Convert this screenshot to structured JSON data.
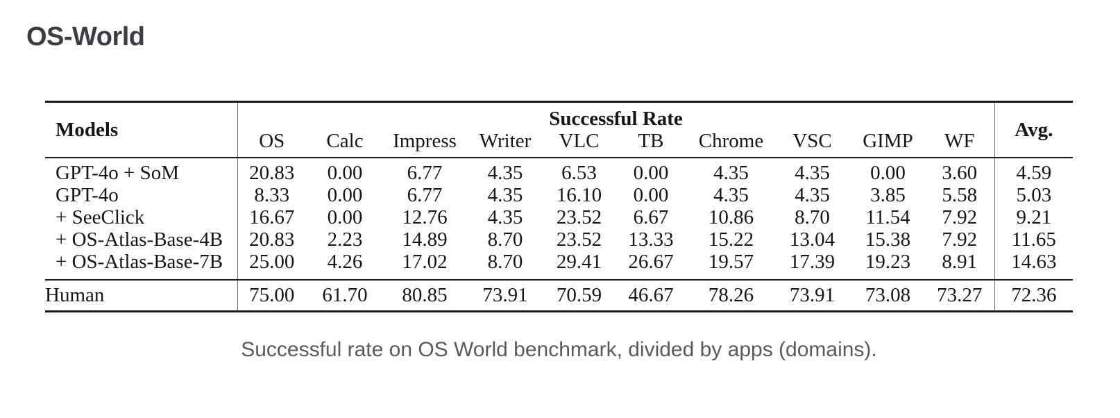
{
  "page": {
    "title": "OS-World"
  },
  "table": {
    "models_header": "Models",
    "group_header": "Successful Rate",
    "avg_header": "Avg.",
    "columns": [
      "OS",
      "Calc",
      "Impress",
      "Writer",
      "VLC",
      "TB",
      "Chrome",
      "VSC",
      "GIMP",
      "WF"
    ],
    "rows": [
      {
        "model": "GPT-4o + SoM",
        "values": [
          "20.83",
          "0.00",
          "6.77",
          "4.35",
          "6.53",
          "0.00",
          "4.35",
          "4.35",
          "0.00",
          "3.60"
        ],
        "avg": "4.59"
      },
      {
        "model": "GPT-4o",
        "values": [
          "8.33",
          "0.00",
          "6.77",
          "4.35",
          "16.10",
          "0.00",
          "4.35",
          "4.35",
          "3.85",
          "5.58"
        ],
        "avg": "5.03"
      },
      {
        "model": "+ SeeClick",
        "values": [
          "16.67",
          "0.00",
          "12.76",
          "4.35",
          "23.52",
          "6.67",
          "10.86",
          "8.70",
          "11.54",
          "7.92"
        ],
        "avg": "9.21"
      },
      {
        "model": "+ OS-Atlas-Base-4B",
        "values": [
          "20.83",
          "2.23",
          "14.89",
          "8.70",
          "23.52",
          "13.33",
          "15.22",
          "13.04",
          "15.38",
          "7.92"
        ],
        "avg": "11.65"
      },
      {
        "model": "+ OS-Atlas-Base-7B",
        "values": [
          "25.00",
          "4.26",
          "17.02",
          "8.70",
          "29.41",
          "26.67",
          "19.57",
          "17.39",
          "19.23",
          "8.91"
        ],
        "avg": "14.63"
      }
    ],
    "footer_row": {
      "model": "Human",
      "values": [
        "75.00",
        "61.70",
        "80.85",
        "73.91",
        "70.59",
        "46.67",
        "78.26",
        "73.91",
        "73.08",
        "73.27"
      ],
      "avg": "72.36"
    }
  },
  "caption": "Successful rate on OS World benchmark, divided by apps (domains)."
}
